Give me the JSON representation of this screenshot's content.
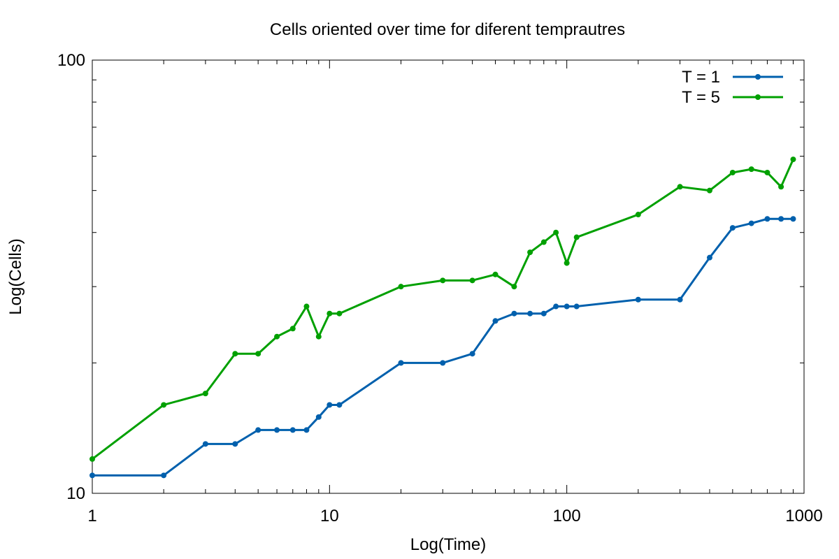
{
  "chart_data": {
    "type": "line",
    "title": "Cells oriented over time for diferent temprautres",
    "xlabel": "Log(Time)",
    "ylabel": "Log(Cells)",
    "x_scale": "log",
    "y_scale": "log",
    "xlim": [
      1,
      1000
    ],
    "ylim": [
      10,
      100
    ],
    "x_ticks": [
      {
        "value": 1,
        "label": "1"
      },
      {
        "value": 10,
        "label": "10"
      },
      {
        "value": 100,
        "label": "100"
      },
      {
        "value": 1000,
        "label": "1000"
      }
    ],
    "y_ticks": [
      {
        "value": 10,
        "label": "10"
      },
      {
        "value": 100,
        "label": "100"
      }
    ],
    "grid": false,
    "legend_position": "top-right",
    "series": [
      {
        "name": "T = 1",
        "color": "#0060ad",
        "marker": "circle",
        "x": [
          1,
          2,
          3,
          4,
          5,
          6,
          7,
          8,
          9,
          10,
          11,
          20,
          30,
          40,
          50,
          60,
          70,
          80,
          90,
          100,
          110,
          200,
          300,
          400,
          500,
          600,
          700,
          800,
          900
        ],
        "y": [
          11,
          11,
          13,
          13,
          14,
          14,
          14,
          14,
          15,
          16,
          16,
          20,
          20,
          21,
          25,
          26,
          26,
          26,
          27,
          27,
          27,
          28,
          28,
          35,
          41,
          42,
          43,
          43,
          43
        ]
      },
      {
        "name": "T = 5",
        "color": "#00a000",
        "marker": "circle",
        "x": [
          1,
          2,
          3,
          4,
          5,
          6,
          7,
          8,
          9,
          10,
          11,
          20,
          30,
          40,
          50,
          60,
          70,
          80,
          90,
          100,
          110,
          200,
          300,
          400,
          500,
          600,
          700,
          800,
          900
        ],
        "y": [
          12,
          16,
          17,
          21,
          21,
          23,
          24,
          27,
          23,
          26,
          26,
          30,
          31,
          31,
          32,
          30,
          36,
          38,
          40,
          34,
          39,
          44,
          51,
          50,
          55,
          56,
          55,
          51,
          59
        ]
      }
    ]
  }
}
